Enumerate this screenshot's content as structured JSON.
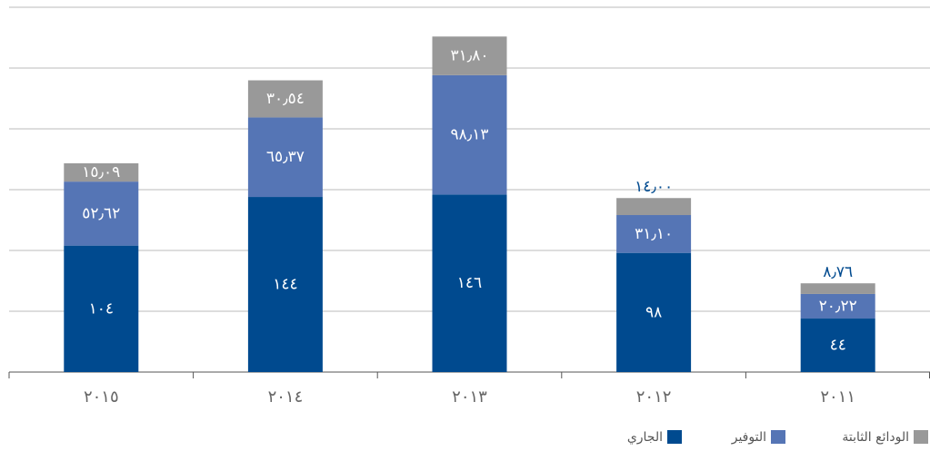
{
  "chart_data": {
    "type": "stacked_bar",
    "categories": [
      "٢٠١٥",
      "٢٠١٤",
      "٢٠١٣",
      "٢٠١٢",
      "٢٠١١"
    ],
    "series": [
      {
        "name": "الجاري",
        "color": "#004a8f",
        "values": [
          104,
          144,
          146,
          98,
          44
        ],
        "value_labels": [
          "١٠٤",
          "١٤٤",
          "١٤٦",
          "٩٨",
          "٤٤"
        ]
      },
      {
        "name": "التوفير",
        "color": "#5575b5",
        "values": [
          52.62,
          65.37,
          98.13,
          31.1,
          20.22
        ],
        "value_labels": [
          "٥٢٫٦٢",
          "٦٥٫٣٧",
          "٩٨٫١٣",
          "٣١٫١٠",
          "٢٠٫٢٢"
        ]
      },
      {
        "name": "الودائع الثابتة",
        "color": "#999999",
        "values": [
          15.09,
          30.54,
          31.8,
          14.0,
          8.76
        ],
        "value_labels": [
          "١٥٫٠٩",
          "٣٠٫٥٤",
          "٣١٫٨٠",
          "١٤٫٠٠",
          "٨٫٧٦"
        ]
      }
    ],
    "ylim": [
      0,
      300
    ],
    "yticks": [
      0,
      50,
      100,
      150,
      200,
      250,
      300
    ],
    "grid": true,
    "legend": "bottom-right"
  }
}
